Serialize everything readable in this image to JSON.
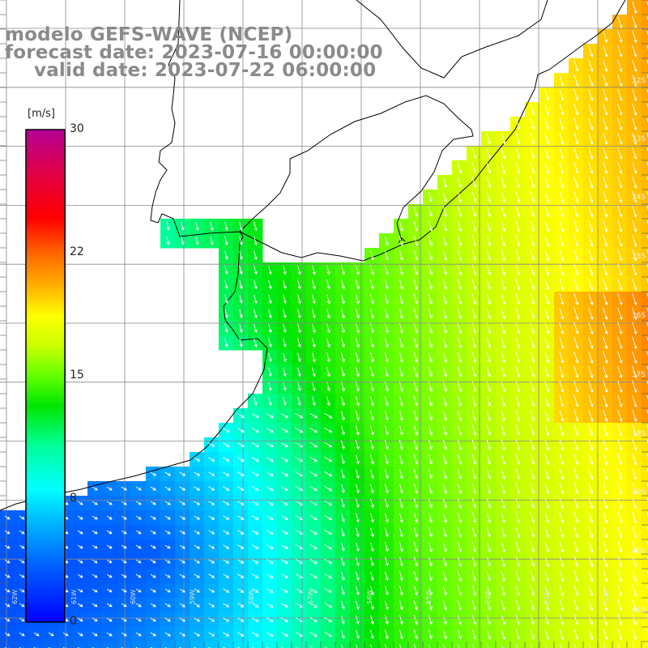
{
  "title": {
    "model": "modelo GEFS-WAVE (NCEP)",
    "forecast": "forecast date: 2023-07-16 00:00:00",
    "valid": "valid date: 2023-07-22 06:00:00"
  },
  "colorbar": {
    "unit": "[m/s]",
    "min": 0,
    "max": 30,
    "ticks": [
      {
        "value": 30,
        "label": "30"
      },
      {
        "value": 22,
        "label": "22"
      },
      {
        "value": 15,
        "label": "15"
      },
      {
        "value": 8,
        "label": "8"
      },
      {
        "value": 0,
        "label": "0"
      }
    ],
    "colors": [
      "#0000ff",
      "#0066ff",
      "#00b4ff",
      "#00ffff",
      "#00ff96",
      "#00e600",
      "#64ff00",
      "#c8ff00",
      "#ffff00",
      "#ffb400",
      "#ff6400",
      "#ff0000",
      "#e6003c",
      "#c8007a",
      "#b40096"
    ]
  },
  "latitude_labels": [
    {
      "value": 32,
      "label": "32S"
    },
    {
      "value": 33,
      "label": "33S"
    },
    {
      "value": 34,
      "label": "34S"
    },
    {
      "value": 35,
      "label": "35S"
    },
    {
      "value": 36,
      "label": "36S"
    },
    {
      "value": 37,
      "label": "37S"
    },
    {
      "value": 38,
      "label": "38S"
    },
    {
      "value": 39,
      "label": "39S"
    },
    {
      "value": 40,
      "label": "40S"
    },
    {
      "value": 41,
      "label": "41S"
    }
  ],
  "longitude_labels": [
    {
      "value": 62,
      "label": "62W"
    },
    {
      "value": 61,
      "label": "61W"
    },
    {
      "value": 60,
      "label": "60W"
    },
    {
      "value": 59,
      "label": "59W"
    },
    {
      "value": 58,
      "label": "58W"
    },
    {
      "value": 57,
      "label": "57W"
    },
    {
      "value": 56,
      "label": "56W"
    },
    {
      "value": 55,
      "label": "55W"
    },
    {
      "value": 54,
      "label": "54W"
    },
    {
      "value": 53,
      "label": "53W"
    },
    {
      "value": 52,
      "label": "52W"
    }
  ],
  "field": {
    "variable": "wind speed with direction arrows",
    "land_color": "#ffffff",
    "grid_line_color": "#888888",
    "coast_color": "#000000",
    "arrow_color": "#ffffff"
  }
}
